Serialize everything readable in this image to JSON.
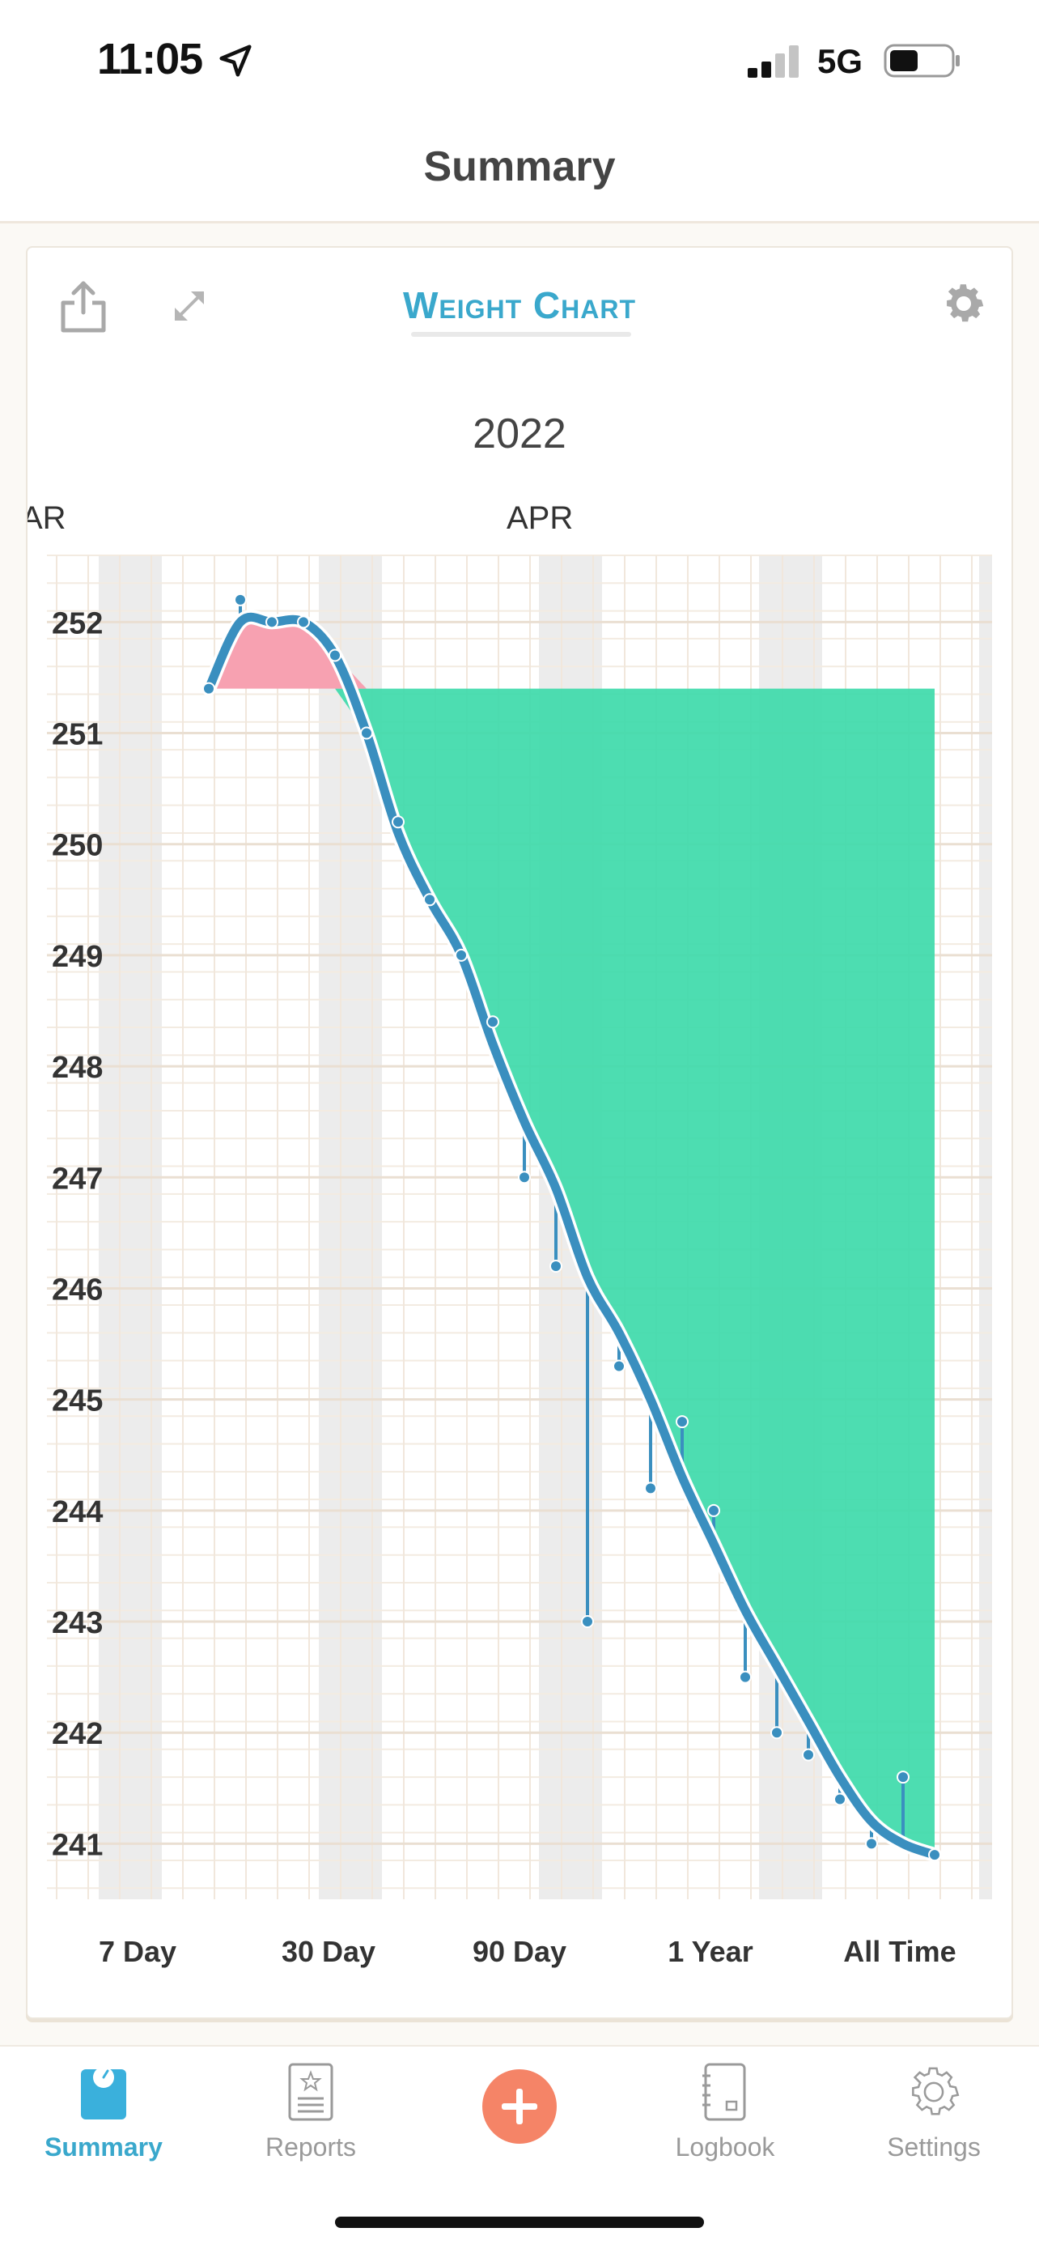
{
  "status_bar": {
    "time": "11:05",
    "network": "5G"
  },
  "nav": {
    "title": "Summary"
  },
  "card": {
    "title": "Weight Chart",
    "year": "2022",
    "months": [
      "AR",
      "APR"
    ]
  },
  "chart_data": {
    "type": "line",
    "title": "Weight Chart",
    "subtitle": "2022",
    "xlabel": "",
    "ylabel": "",
    "ylim": [
      240.5,
      252.6
    ],
    "y_ticks": [
      252,
      251,
      250,
      249,
      248,
      247,
      246,
      245,
      244,
      243,
      242,
      241
    ],
    "x_month_labels": [
      "AR",
      "APR"
    ],
    "x": [
      0,
      1,
      2,
      3,
      4,
      5,
      6,
      7,
      8,
      9,
      10,
      11,
      12,
      13,
      14,
      15,
      16,
      17,
      18,
      19,
      20,
      21,
      22,
      23
    ],
    "series": [
      {
        "values": [
          251.4,
          252.2,
          252.0,
          252.0,
          251.7,
          251.0,
          250.2,
          249.5,
          249.0,
          248.4,
          247.0,
          246.2,
          243.0,
          245.3,
          244.2,
          244.8,
          244.0,
          242.5,
          242.0,
          241.8,
          241.4,
          241.0,
          241.6,
          240.9
        ]
      }
    ],
    "trend": [
      251.4,
      252.0,
      252.0,
      252.0,
      251.7,
      251.0,
      250.1,
      249.5,
      249.0,
      248.2,
      247.5,
      246.9,
      246.1,
      245.6,
      245.0,
      244.3,
      243.7,
      243.1,
      242.6,
      242.1,
      241.6,
      241.2,
      241.0,
      240.9
    ],
    "baseline": 251.4,
    "colors": {
      "trend": "#3a8fbf",
      "gain": "#f7a1b1",
      "loss": "#3edaaa",
      "weekend": "#ececec"
    },
    "grid": true
  },
  "range_selector": [
    "7 Day",
    "30 Day",
    "90 Day",
    "1 Year",
    "All Time"
  ],
  "tabs": [
    {
      "label": "Summary",
      "icon": "scale-icon",
      "active": true
    },
    {
      "label": "Reports",
      "icon": "report-icon"
    },
    {
      "label": "",
      "icon": "add-icon"
    },
    {
      "label": "Logbook",
      "icon": "logbook-icon"
    },
    {
      "label": "Settings",
      "icon": "gear-icon"
    }
  ]
}
